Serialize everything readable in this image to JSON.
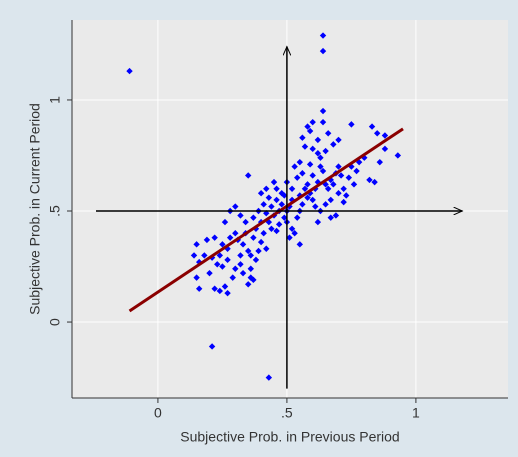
{
  "chart_data": {
    "type": "scatter",
    "xlabel": "Subjective Prob. in Previous Period",
    "ylabel": "Subjective Prob. in Current Period",
    "color": "#0000ff",
    "x": [
      0.15,
      0.14,
      0.16,
      0.18,
      0.15,
      0.16,
      0.2,
      0.22,
      0.24,
      0.27,
      0.26,
      0.21,
      0.23,
      0.25,
      0.27,
      0.29,
      0.3,
      0.32,
      0.33,
      0.35,
      0.36,
      0.37,
      0.19,
      0.22,
      0.25,
      0.27,
      0.28,
      0.3,
      0.31,
      0.33,
      0.35,
      0.36,
      0.38,
      0.39,
      0.34,
      0.37,
      0.38,
      0.4,
      0.41,
      0.26,
      0.28,
      0.3,
      0.32,
      0.34,
      0.37,
      0.39,
      0.35,
      0.41,
      0.42,
      0.43,
      0.44,
      0.45,
      0.46,
      0.47,
      0.48,
      0.49,
      0.5,
      0.51,
      0.52,
      0.48,
      0.46,
      0.45,
      0.5,
      0.52,
      0.53,
      0.54,
      0.55,
      0.56,
      0.55,
      0.57,
      0.58,
      0.59,
      0.6,
      0.61,
      0.62,
      0.6,
      0.63,
      0.64,
      0.65,
      0.66,
      0.67,
      0.68,
      0.69,
      0.7,
      0.71,
      0.72,
      0.73,
      0.74,
      0.75,
      0.76,
      0.77,
      0.78,
      0.8,
      0.82,
      0.84,
      0.86,
      0.88,
      0.85,
      0.83,
      0.88,
      0.75,
      0.7,
      0.68,
      0.66,
      0.64,
      0.64,
      0.6,
      0.58,
      0.56,
      0.57,
      0.6,
      0.62,
      0.63,
      0.65,
      0.55,
      0.53,
      0.54,
      0.56,
      0.58,
      0.59,
      0.61,
      0.63,
      0.65,
      0.67,
      0.69,
      0.62,
      0.7,
      0.72,
      0.52,
      0.5,
      0.49,
      0.43,
      0.42,
      0.4,
      0.47,
      0.46,
      0.44,
      0.51,
      0.55,
      0.67,
      0.64,
      0.64,
      -0.11,
      0.21,
      0.43,
      0.93,
      0.62,
      0.59,
      0.4,
      0.42,
      0.36,
      0.32,
      0.24
    ],
    "values": [
      0.35,
      0.3,
      0.27,
      0.3,
      0.2,
      0.15,
      0.22,
      0.15,
      0.14,
      0.13,
      0.16,
      0.29,
      0.26,
      0.25,
      0.28,
      0.2,
      0.24,
      0.26,
      0.22,
      0.17,
      0.2,
      0.19,
      0.37,
      0.38,
      0.35,
      0.33,
      0.38,
      0.4,
      0.37,
      0.35,
      0.32,
      0.3,
      0.28,
      0.32,
      0.4,
      0.38,
      0.42,
      0.45,
      0.4,
      0.45,
      0.5,
      0.52,
      0.48,
      0.45,
      0.47,
      0.5,
      0.66,
      0.53,
      0.49,
      0.45,
      0.52,
      0.48,
      0.55,
      0.5,
      0.53,
      0.47,
      0.5,
      0.52,
      0.55,
      0.58,
      0.6,
      0.63,
      0.45,
      0.42,
      0.4,
      0.47,
      0.5,
      0.53,
      0.57,
      0.6,
      0.56,
      0.58,
      0.55,
      0.6,
      0.63,
      0.66,
      0.7,
      0.68,
      0.62,
      0.6,
      0.64,
      0.62,
      0.67,
      0.7,
      0.66,
      0.6,
      0.57,
      0.65,
      0.7,
      0.62,
      0.68,
      0.72,
      0.74,
      0.64,
      0.63,
      0.72,
      0.78,
      0.85,
      0.88,
      0.84,
      0.89,
      0.82,
      0.8,
      0.85,
      0.9,
      0.95,
      0.9,
      0.88,
      0.83,
      0.79,
      0.78,
      0.76,
      0.74,
      0.77,
      0.72,
      0.7,
      0.65,
      0.67,
      0.62,
      0.71,
      0.52,
      0.5,
      0.53,
      0.55,
      0.48,
      0.45,
      0.58,
      0.54,
      0.6,
      0.63,
      0.57,
      0.56,
      0.6,
      0.58,
      0.44,
      0.41,
      0.42,
      0.38,
      0.35,
      0.47,
      1.22,
      1.29,
      1.13,
      -0.11,
      -0.25,
      0.75,
      0.82,
      0.86,
      0.36,
      0.33,
      0.24,
      0.3,
      0.3
    ],
    "fit_line": {
      "color": "#8b0000",
      "x": [
        -0.11,
        0.95
      ],
      "values": [
        0.05,
        0.87
      ]
    },
    "arrows": [
      {
        "x": [
          -0.24,
          1.18
        ],
        "values": [
          0.5,
          0.5
        ]
      },
      {
        "x": [
          0.5,
          0.5
        ],
        "values": [
          -0.3,
          1.24
        ]
      }
    ],
    "xlim": [
      -0.333,
      1.357
    ],
    "ylim": [
      -0.342,
      1.36
    ],
    "xticks": [
      0,
      {
        "value": 0.5,
        "label": ".5"
      },
      1
    ],
    "yticks": [
      0,
      {
        "value": 0.5,
        "label": ".5"
      },
      1
    ],
    "grid": true
  }
}
